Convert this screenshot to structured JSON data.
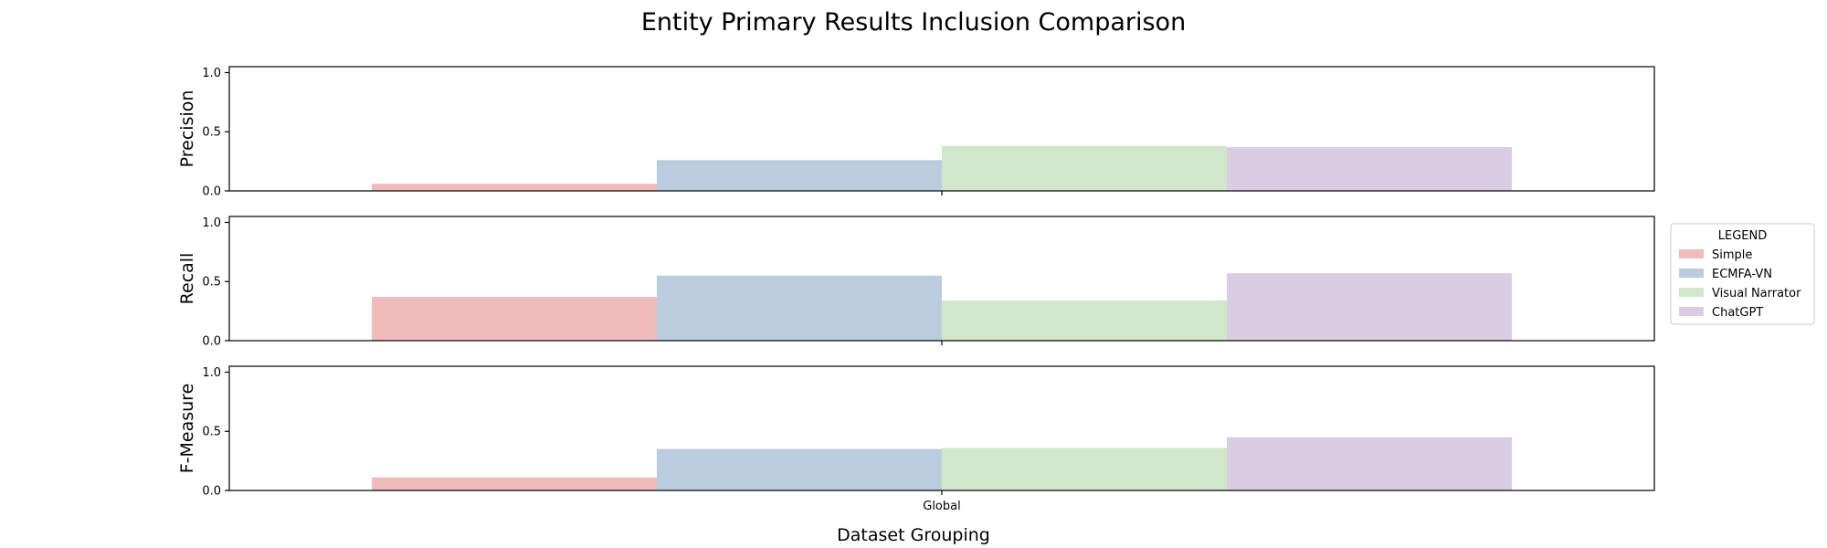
{
  "chart_data": {
    "type": "bar",
    "title": "Entity Primary Results Inclusion Comparison",
    "xlabel": "Dataset Grouping",
    "categories": [
      "Global"
    ],
    "ylim": [
      0,
      1.05
    ],
    "yticks": [
      0.0,
      0.5,
      1.0
    ],
    "ytick_labels": [
      "0.0",
      "0.5",
      "1.0"
    ],
    "grid": false,
    "legend": {
      "title": "LEGEND",
      "placement": "center-right, outside plot area",
      "entries": [
        "Simple",
        "ECMFA-VN",
        "Visual Narrator",
        "ChatGPT"
      ]
    },
    "colors": {
      "Simple": "#f0bbbb",
      "ECMFA-VN": "#b9cddf",
      "Visual Narrator": "#d1e7cb",
      "ChatGPT": "#dacde3"
    },
    "panels": [
      {
        "ylabel": "Precision",
        "series": [
          {
            "name": "Simple",
            "values": [
              0.06
            ]
          },
          {
            "name": "ECMFA-VN",
            "values": [
              0.26
            ]
          },
          {
            "name": "Visual Narrator",
            "values": [
              0.38
            ]
          },
          {
            "name": "ChatGPT",
            "values": [
              0.37
            ]
          }
        ]
      },
      {
        "ylabel": "Recall",
        "series": [
          {
            "name": "Simple",
            "values": [
              0.37
            ]
          },
          {
            "name": "ECMFA-VN",
            "values": [
              0.55
            ]
          },
          {
            "name": "Visual Narrator",
            "values": [
              0.34
            ]
          },
          {
            "name": "ChatGPT",
            "values": [
              0.57
            ]
          }
        ]
      },
      {
        "ylabel": "F-Measure",
        "series": [
          {
            "name": "Simple",
            "values": [
              0.11
            ]
          },
          {
            "name": "ECMFA-VN",
            "values": [
              0.35
            ]
          },
          {
            "name": "Visual Narrator",
            "values": [
              0.36
            ]
          },
          {
            "name": "ChatGPT",
            "values": [
              0.45
            ]
          }
        ]
      }
    ]
  }
}
